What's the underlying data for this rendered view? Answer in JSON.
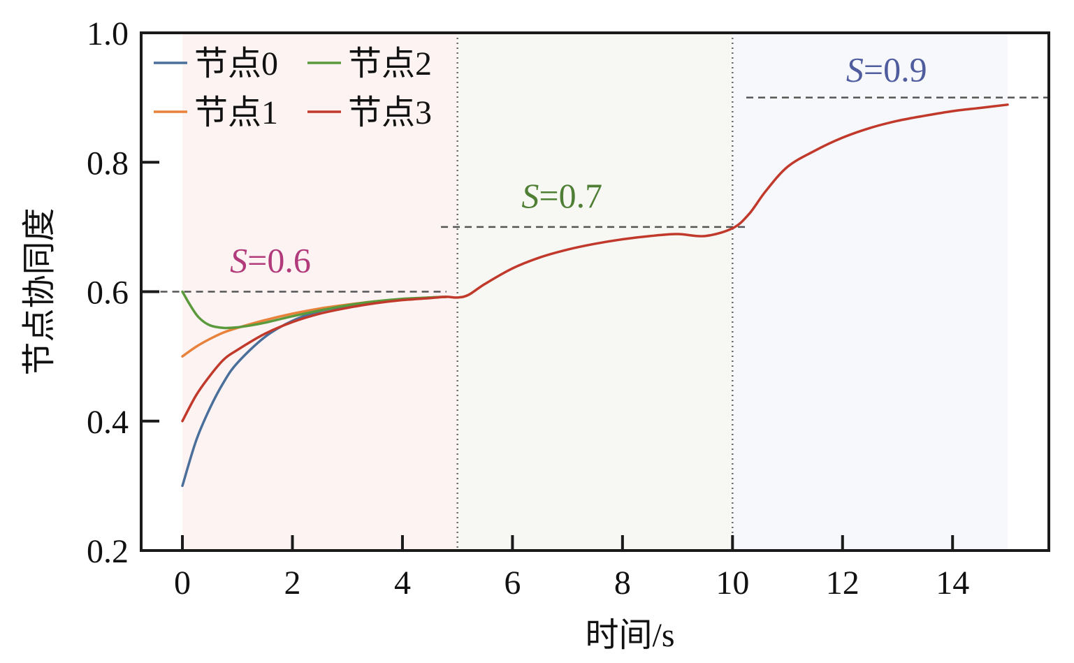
{
  "chart_data": {
    "type": "line",
    "xlabel": "时间/s",
    "ylabel": "节点协同度",
    "xlim": [
      -0.75,
      15.75
    ],
    "ylim": [
      0.2,
      1.0
    ],
    "xticks": [
      0,
      2,
      4,
      6,
      8,
      10,
      12,
      14
    ],
    "xtick_labels": [
      "0",
      "2",
      "4",
      "6",
      "8",
      "10",
      "12",
      "14"
    ],
    "yticks": [
      0.2,
      0.4,
      0.6,
      0.8,
      1.0
    ],
    "ytick_labels": [
      "0.2",
      "0.4",
      "0.6",
      "0.8",
      "1.0"
    ],
    "grid": false,
    "legend_position": "top-left",
    "phases": [
      {
        "x_range": [
          0,
          5
        ],
        "color": "#fdf3f3"
      },
      {
        "x_range": [
          5,
          10
        ],
        "color": "#f7f8f3"
      },
      {
        "x_range": [
          10,
          15
        ],
        "color": "#f7f8fb"
      }
    ],
    "phase_boundaries": [
      5,
      10
    ],
    "targets": [
      {
        "x_range": [
          -0.4,
          4.8
        ],
        "y": 0.6,
        "label_var": "S",
        "label_rest": "=0.6",
        "label_x": 1.6,
        "label_y": 0.63,
        "color": "#b03a7a"
      },
      {
        "x_range": [
          4.7,
          10.3
        ],
        "y": 0.7,
        "label_var": "S",
        "label_rest": "=0.7",
        "label_x": 6.9,
        "label_y": 0.73,
        "color": "#4e7f35"
      },
      {
        "x_range": [
          10.25,
          15.75
        ],
        "y": 0.9,
        "label_var": "S",
        "label_rest": "=0.9",
        "label_x": 12.8,
        "label_y": 0.925,
        "color": "#4f5c9e"
      }
    ],
    "series": [
      {
        "name": "节点0",
        "color": "#4a6f9a",
        "x": [
          0,
          0.25,
          0.5,
          0.75,
          1,
          1.5,
          2,
          2.5,
          3,
          3.5,
          4,
          4.5,
          4.8
        ],
        "y": [
          0.3,
          0.37,
          0.42,
          0.46,
          0.49,
          0.53,
          0.555,
          0.57,
          0.578,
          0.584,
          0.588,
          0.591,
          0.592
        ]
      },
      {
        "name": "节点1",
        "color": "#e8823a",
        "x": [
          0,
          0.25,
          0.5,
          0.75,
          1,
          1.5,
          2,
          2.5,
          3,
          3.5,
          4,
          4.5,
          4.8
        ],
        "y": [
          0.5,
          0.515,
          0.527,
          0.537,
          0.544,
          0.556,
          0.566,
          0.574,
          0.58,
          0.585,
          0.588,
          0.591,
          0.592
        ]
      },
      {
        "name": "节点2",
        "color": "#5a9a3c",
        "x": [
          0,
          0.15,
          0.3,
          0.5,
          0.75,
          1,
          1.25,
          1.5,
          2,
          2.5,
          3,
          3.5,
          4,
          4.5,
          4.8
        ],
        "y": [
          0.6,
          0.578,
          0.56,
          0.548,
          0.544,
          0.545,
          0.548,
          0.552,
          0.562,
          0.571,
          0.579,
          0.585,
          0.589,
          0.591,
          0.592
        ]
      },
      {
        "name": "节点3",
        "color": "#c0392b",
        "x": [
          0,
          0.25,
          0.5,
          0.75,
          1,
          1.5,
          2,
          2.5,
          3,
          3.5,
          4,
          4.5,
          4.8,
          5.0,
          5.2,
          5.5,
          6,
          6.5,
          7,
          7.5,
          8,
          8.5,
          9,
          9.5,
          10,
          10.3,
          10.6,
          11,
          11.5,
          12,
          12.5,
          13,
          13.5,
          14,
          14.5,
          15
        ],
        "y": [
          0.4,
          0.44,
          0.47,
          0.495,
          0.51,
          0.535,
          0.553,
          0.566,
          0.575,
          0.582,
          0.587,
          0.59,
          0.592,
          0.591,
          0.595,
          0.612,
          0.636,
          0.653,
          0.665,
          0.674,
          0.681,
          0.686,
          0.689,
          0.686,
          0.698,
          0.72,
          0.755,
          0.793,
          0.818,
          0.838,
          0.853,
          0.864,
          0.872,
          0.879,
          0.884,
          0.889
        ]
      }
    ]
  }
}
